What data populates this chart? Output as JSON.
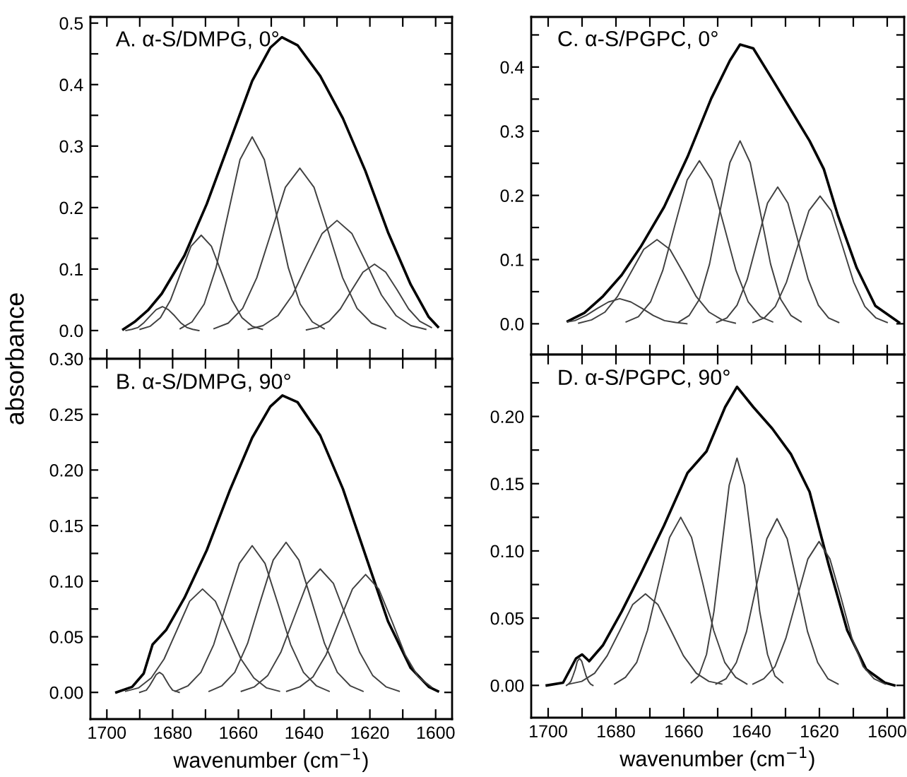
{
  "chart_data": [
    {
      "type": "line",
      "title": "A. α-S/DMPG, 0°",
      "ylabel": "absorbance",
      "xlim": [
        1705,
        1595
      ],
      "ylim": [
        -0.046,
        0.51
      ],
      "tick_labels": "y",
      "xticks": [
        1700,
        {
          "value": 1690,
          "label": null
        },
        1680,
        {
          "value": 1670,
          "label": null
        },
        1660,
        {
          "value": 1650,
          "label": null
        },
        1640,
        {
          "value": 1630,
          "label": null
        },
        1620,
        {
          "value": 1610,
          "label": null
        },
        1600
      ],
      "yticks": [
        {
          "value": 0.0,
          "label": "0.0"
        },
        {
          "value": 0.05,
          "label": null
        },
        0.1,
        {
          "value": 0.15,
          "label": null
        },
        0.2,
        {
          "value": 0.25,
          "label": null
        },
        0.3,
        {
          "value": 0.35,
          "label": null
        },
        0.4,
        {
          "value": 0.45,
          "label": null
        },
        0.5
      ],
      "series": [
        {
          "color": "#000000",
          "x": [
            1599.3,
            1602.1,
            1607.6,
            1614.5,
            1621.4,
            1628.2,
            1635.1,
            1642.0,
            1646.8,
            1650.3,
            1655.8,
            1662.7,
            1669.6,
            1676.4,
            1683.3,
            1687.5,
            1691.6,
            1695.0
          ],
          "values": [
            0.006,
            0.022,
            0.075,
            0.16,
            0.26,
            0.345,
            0.414,
            0.464,
            0.477,
            0.46,
            0.406,
            0.306,
            0.206,
            0.122,
            0.06,
            0.033,
            0.014,
            0.002
          ]
        },
        {
          "color": "#404040",
          "x": [
            1672.0,
            1673.9,
            1675.7,
            1677.6,
            1679.4,
            1681.3,
            1683.1,
            1685.0,
            1686.8,
            1688.7,
            1690.5,
            1692.4,
            1694.2
          ],
          "values": [
            0.0,
            0.002,
            0.005,
            0.013,
            0.024,
            0.034,
            0.039,
            0.034,
            0.024,
            0.013,
            0.005,
            0.002,
            0.0
          ]
        },
        {
          "color": "#404040",
          "x": [
            1652.7,
            1655.8,
            1658.9,
            1662.0,
            1665.1,
            1668.2,
            1671.3,
            1674.4,
            1677.5,
            1680.6,
            1683.7,
            1686.8,
            1689.9
          ],
          "values": [
            0.002,
            0.007,
            0.021,
            0.05,
            0.094,
            0.137,
            0.155,
            0.137,
            0.094,
            0.05,
            0.021,
            0.007,
            0.002
          ]
        },
        {
          "color": "#404040",
          "x": [
            1633.9,
            1637.5,
            1641.2,
            1644.8,
            1648.5,
            1652.1,
            1655.8,
            1659.5,
            1663.1,
            1666.8,
            1670.4,
            1674.1,
            1677.7
          ],
          "values": [
            0.003,
            0.014,
            0.043,
            0.102,
            0.191,
            0.278,
            0.315,
            0.278,
            0.191,
            0.102,
            0.043,
            0.014,
            0.003
          ]
        },
        {
          "color": "#404040",
          "x": [
            1615.2,
            1619.5,
            1623.9,
            1628.3,
            1632.6,
            1637.0,
            1641.3,
            1645.7,
            1650.0,
            1654.4,
            1658.7,
            1663.1,
            1667.4
          ],
          "values": [
            0.003,
            0.012,
            0.036,
            0.086,
            0.16,
            0.233,
            0.264,
            0.233,
            0.16,
            0.086,
            0.036,
            0.012,
            0.003
          ]
        },
        {
          "color": "#404040",
          "x": [
            1603.0,
            1607.5,
            1612.0,
            1616.5,
            1621.0,
            1625.5,
            1630.0,
            1634.5,
            1639.0,
            1643.5,
            1648.0,
            1652.5,
            1657.0
          ],
          "values": [
            0.002,
            0.008,
            0.024,
            0.058,
            0.109,
            0.158,
            0.179,
            0.158,
            0.109,
            0.058,
            0.024,
            0.008,
            0.002
          ]
        },
        {
          "color": "#404040",
          "x": [
            1601.3,
            1604.8,
            1608.2,
            1611.7,
            1615.2,
            1618.6,
            1622.1,
            1625.5,
            1629.0,
            1632.4,
            1635.9,
            1639.3
          ],
          "values": [
            0.005,
            0.015,
            0.035,
            0.066,
            0.095,
            0.108,
            0.095,
            0.066,
            0.035,
            0.015,
            0.005,
            0.001
          ]
        }
      ]
    },
    {
      "type": "line",
      "title": "B. α-S/DMPG, 90°",
      "xlabel": "wavenumber (cm$^{−1}$)",
      "xlim": [
        1705,
        1595
      ],
      "ylim": [
        -0.024,
        0.3
      ],
      "xticks": [
        1700,
        {
          "value": 1690,
          "label": null
        },
        1680,
        {
          "value": 1670,
          "label": null
        },
        1660,
        {
          "value": 1650,
          "label": null
        },
        1640,
        {
          "value": 1630,
          "label": null
        },
        1620,
        {
          "value": 1610,
          "label": null
        },
        1600
      ],
      "yticks": [
        {
          "value": 0.0,
          "label": "0.00"
        },
        {
          "value": 0.025,
          "label": null
        },
        {
          "value": 0.05,
          "label": "0.05"
        },
        {
          "value": 0.075,
          "label": null
        },
        {
          "value": 0.1,
          "label": "0.10"
        },
        {
          "value": 0.125,
          "label": null
        },
        {
          "value": 0.15,
          "label": "0.15"
        },
        {
          "value": 0.175,
          "label": null
        },
        {
          "value": 0.2,
          "label": "0.20"
        },
        {
          "value": 0.225,
          "label": null
        },
        {
          "value": 0.25,
          "label": "0.25"
        },
        {
          "value": 0.275,
          "label": null
        },
        {
          "value": 0.3,
          "label": "0.30"
        }
      ],
      "series": [
        {
          "color": "#000000",
          "x": [
            1599.3,
            1602.1,
            1607.6,
            1614.5,
            1621.3,
            1628.2,
            1635.1,
            1642.0,
            1646.6,
            1650.3,
            1655.8,
            1662.7,
            1669.6,
            1676.4,
            1682.0,
            1686.1,
            1688.8,
            1692.3,
            1697.1
          ],
          "values": [
            0.001,
            0.005,
            0.022,
            0.064,
            0.123,
            0.183,
            0.231,
            0.261,
            0.267,
            0.257,
            0.229,
            0.181,
            0.128,
            0.085,
            0.056,
            0.043,
            0.017,
            0.005,
            0.0
          ]
        },
        {
          "color": "#404040",
          "x": [
            1678,
            1679,
            1680,
            1681,
            1682,
            1683,
            1684,
            1685,
            1686,
            1687,
            1688,
            1689,
            1690
          ],
          "values": [
            0.0,
            0.001,
            0.002,
            0.006,
            0.011,
            0.016,
            0.018,
            0.016,
            0.011,
            0.006,
            0.002,
            0.001,
            0.0
          ]
        },
        {
          "color": "#404040",
          "x": [
            1647.5,
            1651.4,
            1655.3,
            1659.2,
            1663.1,
            1667.0,
            1670.9,
            1674.8,
            1678.7,
            1682.6,
            1686.5,
            1690.4,
            1694.3
          ],
          "values": [
            0.001,
            0.004,
            0.013,
            0.03,
            0.056,
            0.082,
            0.093,
            0.082,
            0.056,
            0.03,
            0.013,
            0.004,
            0.001
          ]
        },
        {
          "color": "#404040",
          "x": [
            1632.4,
            1636.3,
            1640.2,
            1644.1,
            1648.0,
            1651.9,
            1655.8,
            1659.7,
            1663.6,
            1667.5,
            1671.4,
            1675.3,
            1679.2
          ],
          "values": [
            0.001,
            0.006,
            0.018,
            0.043,
            0.08,
            0.116,
            0.132,
            0.116,
            0.08,
            0.043,
            0.018,
            0.006,
            0.001
          ]
        },
        {
          "color": "#404040",
          "x": [
            1622.1,
            1626.0,
            1629.9,
            1633.8,
            1637.7,
            1641.6,
            1645.5,
            1649.4,
            1653.3,
            1657.2,
            1661.1,
            1665.0,
            1668.9
          ],
          "values": [
            0.001,
            0.006,
            0.018,
            0.044,
            0.082,
            0.119,
            0.135,
            0.119,
            0.082,
            0.044,
            0.018,
            0.006,
            0.001
          ]
        },
        {
          "color": "#404040",
          "x": [
            1611.1,
            1615.1,
            1619.1,
            1623.1,
            1627.1,
            1631.1,
            1635.1,
            1639.1,
            1643.1,
            1647.1,
            1651.1,
            1655.1,
            1659.1
          ],
          "values": [
            0.001,
            0.005,
            0.015,
            0.036,
            0.067,
            0.098,
            0.111,
            0.098,
            0.067,
            0.036,
            0.015,
            0.005,
            0.001
          ]
        },
        {
          "color": "#404040",
          "x": [
            1601.3,
            1605.3,
            1609.3,
            1613.3,
            1617.3,
            1621.3,
            1625.3,
            1629.3,
            1633.3,
            1637.3,
            1641.3,
            1645.3
          ],
          "values": [
            0.005,
            0.014,
            0.034,
            0.064,
            0.093,
            0.106,
            0.093,
            0.064,
            0.034,
            0.014,
            0.005,
            0.001
          ]
        }
      ]
    },
    {
      "type": "line",
      "title": "C. α-S/PGPC, 0°",
      "xlim": [
        1705,
        1595
      ],
      "ylim": [
        -0.048,
        0.478
      ],
      "tick_labels": "y",
      "xticks": [
        1700,
        {
          "value": 1690,
          "label": null
        },
        1680,
        {
          "value": 1670,
          "label": null
        },
        1660,
        {
          "value": 1650,
          "label": null
        },
        1640,
        {
          "value": 1630,
          "label": null
        },
        1620,
        {
          "value": 1610,
          "label": null
        },
        1600
      ],
      "yticks": [
        {
          "value": 0.0,
          "label": "0.0"
        },
        {
          "value": 0.05,
          "label": null
        },
        0.1,
        {
          "value": 0.15,
          "label": null
        },
        0.2,
        {
          "value": 0.25,
          "label": null
        },
        0.3,
        {
          "value": 0.35,
          "label": null
        },
        0.4,
        {
          "value": 0.45,
          "label": null
        }
      ],
      "series": [
        {
          "color": "#000000",
          "x": [
            1596.5,
            1603.5,
            1609.0,
            1614.5,
            1618.7,
            1622.9,
            1628.4,
            1633.9,
            1639.5,
            1643.4,
            1646.4,
            1651.9,
            1658.9,
            1665.8,
            1672.7,
            1678.3,
            1683.8,
            1689.3,
            1694.2
          ],
          "values": [
            0.002,
            0.028,
            0.087,
            0.168,
            0.241,
            0.285,
            0.333,
            0.381,
            0.429,
            0.435,
            0.41,
            0.351,
            0.26,
            0.182,
            0.12,
            0.076,
            0.043,
            0.017,
            0.004
          ]
        },
        {
          "color": "#404040",
          "x": [
            1659.1,
            1662.4,
            1665.7,
            1669.0,
            1672.3,
            1675.6,
            1678.9,
            1682.2,
            1685.5,
            1688.8,
            1692.1,
            1694.2
          ],
          "values": [
            0.0,
            0.002,
            0.005,
            0.013,
            0.024,
            0.034,
            0.039,
            0.034,
            0.024,
            0.013,
            0.005,
            0.003
          ]
        },
        {
          "color": "#404040",
          "x": [
            1644.8,
            1648.7,
            1652.5,
            1656.4,
            1660.2,
            1664.1,
            1667.9,
            1671.8,
            1675.6,
            1679.5,
            1683.3,
            1687.2,
            1691.0
          ],
          "values": [
            0.001,
            0.006,
            0.018,
            0.043,
            0.08,
            0.116,
            0.131,
            0.116,
            0.08,
            0.043,
            0.018,
            0.006,
            0.001
          ]
        },
        {
          "color": "#404040",
          "x": [
            1633.8,
            1637.4,
            1641.0,
            1644.6,
            1648.2,
            1651.8,
            1655.4,
            1659.0,
            1662.6,
            1666.2,
            1669.8,
            1673.4,
            1677.0
          ],
          "values": [
            0.003,
            0.011,
            0.034,
            0.083,
            0.154,
            0.224,
            0.254,
            0.224,
            0.154,
            0.083,
            0.034,
            0.011,
            0.003
          ]
        },
        {
          "color": "#404040",
          "x": [
            1625.4,
            1628.4,
            1631.4,
            1634.4,
            1637.4,
            1640.4,
            1643.4,
            1646.4,
            1649.4,
            1652.4,
            1655.4,
            1658.4,
            1661.4
          ],
          "values": [
            0.003,
            0.013,
            0.038,
            0.093,
            0.173,
            0.251,
            0.285,
            0.251,
            0.173,
            0.093,
            0.038,
            0.013,
            0.003
          ]
        },
        {
          "color": "#404040",
          "x": [
            1614.3,
            1617.3,
            1620.3,
            1623.3,
            1626.3,
            1629.3,
            1632.3,
            1635.3,
            1638.3,
            1641.3,
            1644.3,
            1647.3,
            1650.3
          ],
          "values": [
            0.002,
            0.009,
            0.029,
            0.069,
            0.129,
            0.188,
            0.213,
            0.188,
            0.129,
            0.069,
            0.029,
            0.009,
            0.002
          ]
        },
        {
          "color": "#404040",
          "x": [
            1600.0,
            1603.3,
            1606.6,
            1609.9,
            1613.2,
            1616.5,
            1619.8,
            1623.1,
            1626.4,
            1629.7,
            1633.0,
            1636.3,
            1639.6
          ],
          "values": [
            0.002,
            0.009,
            0.027,
            0.065,
            0.121,
            0.176,
            0.199,
            0.176,
            0.121,
            0.065,
            0.027,
            0.009,
            0.002
          ]
        }
      ]
    },
    {
      "type": "line",
      "title": "D. α-S/PGPC, 90°",
      "xlabel": "wavenumber (cm$^{−1}$)",
      "xlim": [
        1705,
        1595
      ],
      "ylim": [
        -0.024,
        0.246
      ],
      "xticks": [
        1700,
        {
          "value": 1690,
          "label": null
        },
        1680,
        {
          "value": 1670,
          "label": null
        },
        1660,
        {
          "value": 1650,
          "label": null
        },
        1640,
        {
          "value": 1630,
          "label": null
        },
        1620,
        {
          "value": 1610,
          "label": null
        },
        1600
      ],
      "yticks": [
        {
          "value": 0.0,
          "label": "0.00"
        },
        {
          "value": 0.025,
          "label": null
        },
        {
          "value": 0.05,
          "label": "0.05"
        },
        {
          "value": 0.075,
          "label": null
        },
        {
          "value": 0.1,
          "label": "0.10"
        },
        {
          "value": 0.125,
          "label": null
        },
        {
          "value": 0.15,
          "label": "0.15"
        },
        {
          "value": 0.175,
          "label": null
        },
        {
          "value": 0.2,
          "label": "0.20"
        },
        {
          "value": 0.225,
          "label": null
        }
      ],
      "series": [
        {
          "color": "#000000",
          "x": [
            1597.9,
            1600.7,
            1606.2,
            1611.8,
            1617.3,
            1622.9,
            1628.4,
            1633.9,
            1639.5,
            1644.3,
            1647.8,
            1653.3,
            1658.9,
            1665.8,
            1672.7,
            1678.3,
            1683.8,
            1687.9,
            1690.0,
            1691.8,
            1695.6,
            1700.4
          ],
          "values": [
            0,
            0.002,
            0.012,
            0.041,
            0.09,
            0.144,
            0.172,
            0.191,
            0.207,
            0.222,
            0.207,
            0.174,
            0.158,
            0.119,
            0.083,
            0.055,
            0.03,
            0.018,
            0.023,
            0.02,
            0.002,
            0
          ]
        },
        {
          "color": "#404040",
          "x": [
            1686.8,
            1687.5,
            1688.1,
            1688.8,
            1689.4,
            1690.1,
            1690.7,
            1691.4,
            1692.0,
            1692.7,
            1693.3,
            1694.0,
            1694.6
          ],
          "values": [
            0.0,
            0.001,
            0.003,
            0.007,
            0.012,
            0.018,
            0.02,
            0.018,
            0.012,
            0.007,
            0.003,
            0.001,
            0.0
          ]
        },
        {
          "color": "#404040",
          "x": [
            1648.8,
            1652.6,
            1656.3,
            1660.1,
            1663.8,
            1667.6,
            1671.3,
            1675.1,
            1678.8,
            1682.6,
            1686.3,
            1690.1,
            1693.8
          ],
          "values": [
            0.001,
            0.003,
            0.009,
            0.022,
            0.041,
            0.06,
            0.068,
            0.06,
            0.041,
            0.022,
            0.009,
            0.003,
            0.001
          ]
        },
        {
          "color": "#404040",
          "x": [
            1641.4,
            1644.7,
            1647.9,
            1651.2,
            1654.4,
            1657.7,
            1660.9,
            1664.2,
            1667.4,
            1670.7,
            1673.9,
            1677.2,
            1680.4
          ],
          "values": [
            0.001,
            0.006,
            0.017,
            0.041,
            0.076,
            0.11,
            0.125,
            0.11,
            0.076,
            0.041,
            0.017,
            0.006,
            0.001
          ]
        },
        {
          "color": "#404040",
          "x": [
            1630.8,
            1633.1,
            1635.3,
            1637.6,
            1639.8,
            1642.1,
            1644.3,
            1646.6,
            1648.8,
            1651.1,
            1653.3,
            1655.6,
            1657.8
          ],
          "values": [
            0.002,
            0.007,
            0.023,
            0.055,
            0.103,
            0.149,
            0.169,
            0.149,
            0.103,
            0.055,
            0.023,
            0.007,
            0.002
          ]
        },
        {
          "color": "#404040",
          "x": [
            1614.5,
            1617.5,
            1620.5,
            1623.5,
            1626.5,
            1629.5,
            1632.5,
            1635.5,
            1638.5,
            1641.5,
            1644.5,
            1647.5,
            1650.5
          ],
          "values": [
            0.001,
            0.005,
            0.017,
            0.04,
            0.075,
            0.109,
            0.124,
            0.109,
            0.075,
            0.04,
            0.017,
            0.005,
            0.001
          ]
        },
        {
          "color": "#404040",
          "x": [
            1600.6,
            1603.9,
            1607.1,
            1610.4,
            1613.6,
            1616.9,
            1620.1,
            1623.4,
            1626.6,
            1629.9,
            1633.1,
            1636.4,
            1639.6
          ],
          "values": [
            0.001,
            0.005,
            0.014,
            0.035,
            0.065,
            0.094,
            0.107,
            0.094,
            0.065,
            0.035,
            0.014,
            0.005,
            0.001
          ]
        }
      ]
    }
  ]
}
